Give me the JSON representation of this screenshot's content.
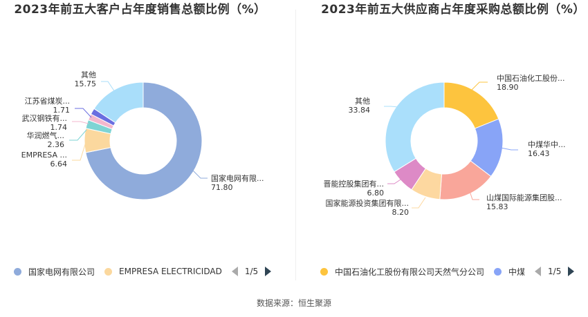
{
  "source": "数据来源：恒生聚源",
  "chart_data": [
    {
      "type": "pie",
      "title": "2023年前五大客户占年度销售总额比例（%）",
      "slices": [
        {
          "label": "国家电网有限...",
          "full_name": "国家电网有限公司",
          "value": 71.8,
          "value_label": "71.80",
          "color": "#8fabdb"
        },
        {
          "label": "EMPRESA ...",
          "full_name": "EMPRESA ELECTRICIDAD",
          "value": 6.64,
          "value_label": "6.64",
          "color": "#fbd89e"
        },
        {
          "label": "华润燃气...",
          "value": 2.36,
          "value_label": "2.36",
          "color": "#7ed4d4"
        },
        {
          "label": "武汉钢铁有...",
          "value": 1.74,
          "value_label": "1.74",
          "color": "#f3b7cd"
        },
        {
          "label": "江苏省煤炭...",
          "value": 1.71,
          "value_label": "1.71",
          "color": "#6a6ee0"
        },
        {
          "label": "其他",
          "value": 15.75,
          "value_label": "15.75",
          "color": "#a9defa"
        }
      ],
      "legend": {
        "items": [
          {
            "label": "国家电网有限公司",
            "color": "#8fabdb"
          },
          {
            "label": "EMPRESA ELECTRICIDAD",
            "color": "#fbd89e"
          }
        ],
        "page": "1/5"
      }
    },
    {
      "type": "pie",
      "title": "2023年前五大供应商占年度采购总额比例（%）",
      "slices": [
        {
          "label": "中国石油化工股份...",
          "full_name": "中国石油化工股份有限公司天然气分公司",
          "value": 18.9,
          "value_label": "18.90",
          "color": "#fdc43e"
        },
        {
          "label": "中煤华中...",
          "value": 16.43,
          "value_label": "16.43",
          "color": "#88a4f7"
        },
        {
          "label": "山煤国际能源集团股...",
          "value": 15.83,
          "value_label": "15.83",
          "color": "#f9a69a"
        },
        {
          "label": "国家能源投资集团有限...",
          "value": 8.2,
          "value_label": "8.20",
          "color": "#fdd8a0"
        },
        {
          "label": "晋能控股集团有...",
          "value": 6.8,
          "value_label": "6.80",
          "color": "#dd8ac6"
        },
        {
          "label": "其他",
          "value": 33.84,
          "value_label": "33.84",
          "color": "#aadffb"
        }
      ],
      "legend": {
        "items": [
          {
            "label": "中国石油化工股份有限公司天然气分公司",
            "color": "#fdc43e"
          },
          {
            "label": "中煤",
            "color": "#88a4f7"
          }
        ],
        "page": "1/5"
      }
    }
  ]
}
